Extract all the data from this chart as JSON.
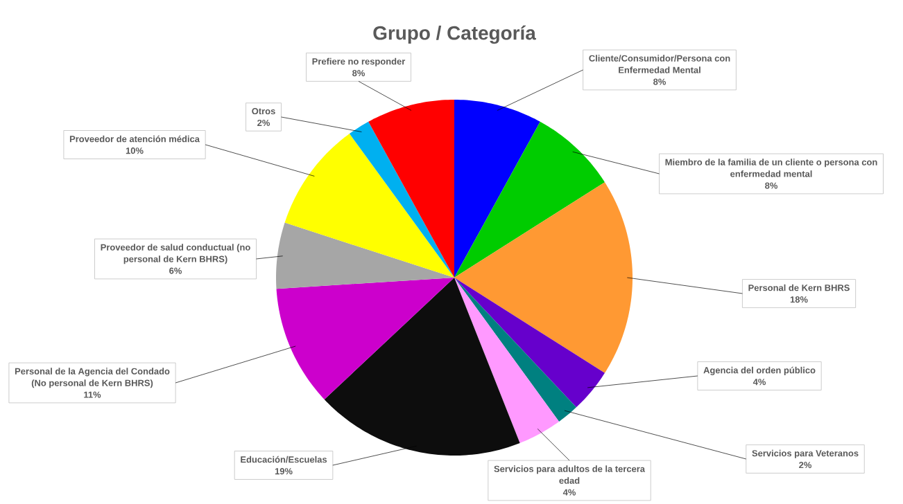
{
  "chart_data": {
    "type": "pie",
    "title": "Grupo / Categoría",
    "categories": [
      "Cliente/Consumidor/Persona con Enfermedad Mental",
      "Miembro de la familia de un cliente o persona con enfermedad mental",
      "Personal de Kern BHRS",
      "Agencia del orden público",
      "Servicios para Veteranos",
      "Servicios para adultos de la tercera edad",
      "Educación/Escuelas",
      "Personal de la Agencia del Condado (No personal de Kern BHRS)",
      "Proveedor de salud conductual (no personal de Kern BHRS)",
      "Proveedor de atención médica",
      "Otros",
      "Prefiere no responder"
    ],
    "values": [
      8,
      8,
      18,
      4,
      2,
      4,
      19,
      11,
      6,
      10,
      2,
      8
    ],
    "value_labels": [
      "8%",
      "8%",
      "18%",
      "4%",
      "2%",
      "4%",
      "19%",
      "11%",
      "6%",
      "10%",
      "2%",
      "8%"
    ],
    "colors": [
      "#0000ff",
      "#00cc00",
      "#ff9933",
      "#6600cc",
      "#008080",
      "#ff99ff",
      "#0d0d0d",
      "#cc00cc",
      "#a6a6a6",
      "#ffff00",
      "#00b0f0",
      "#ff0000"
    ]
  }
}
